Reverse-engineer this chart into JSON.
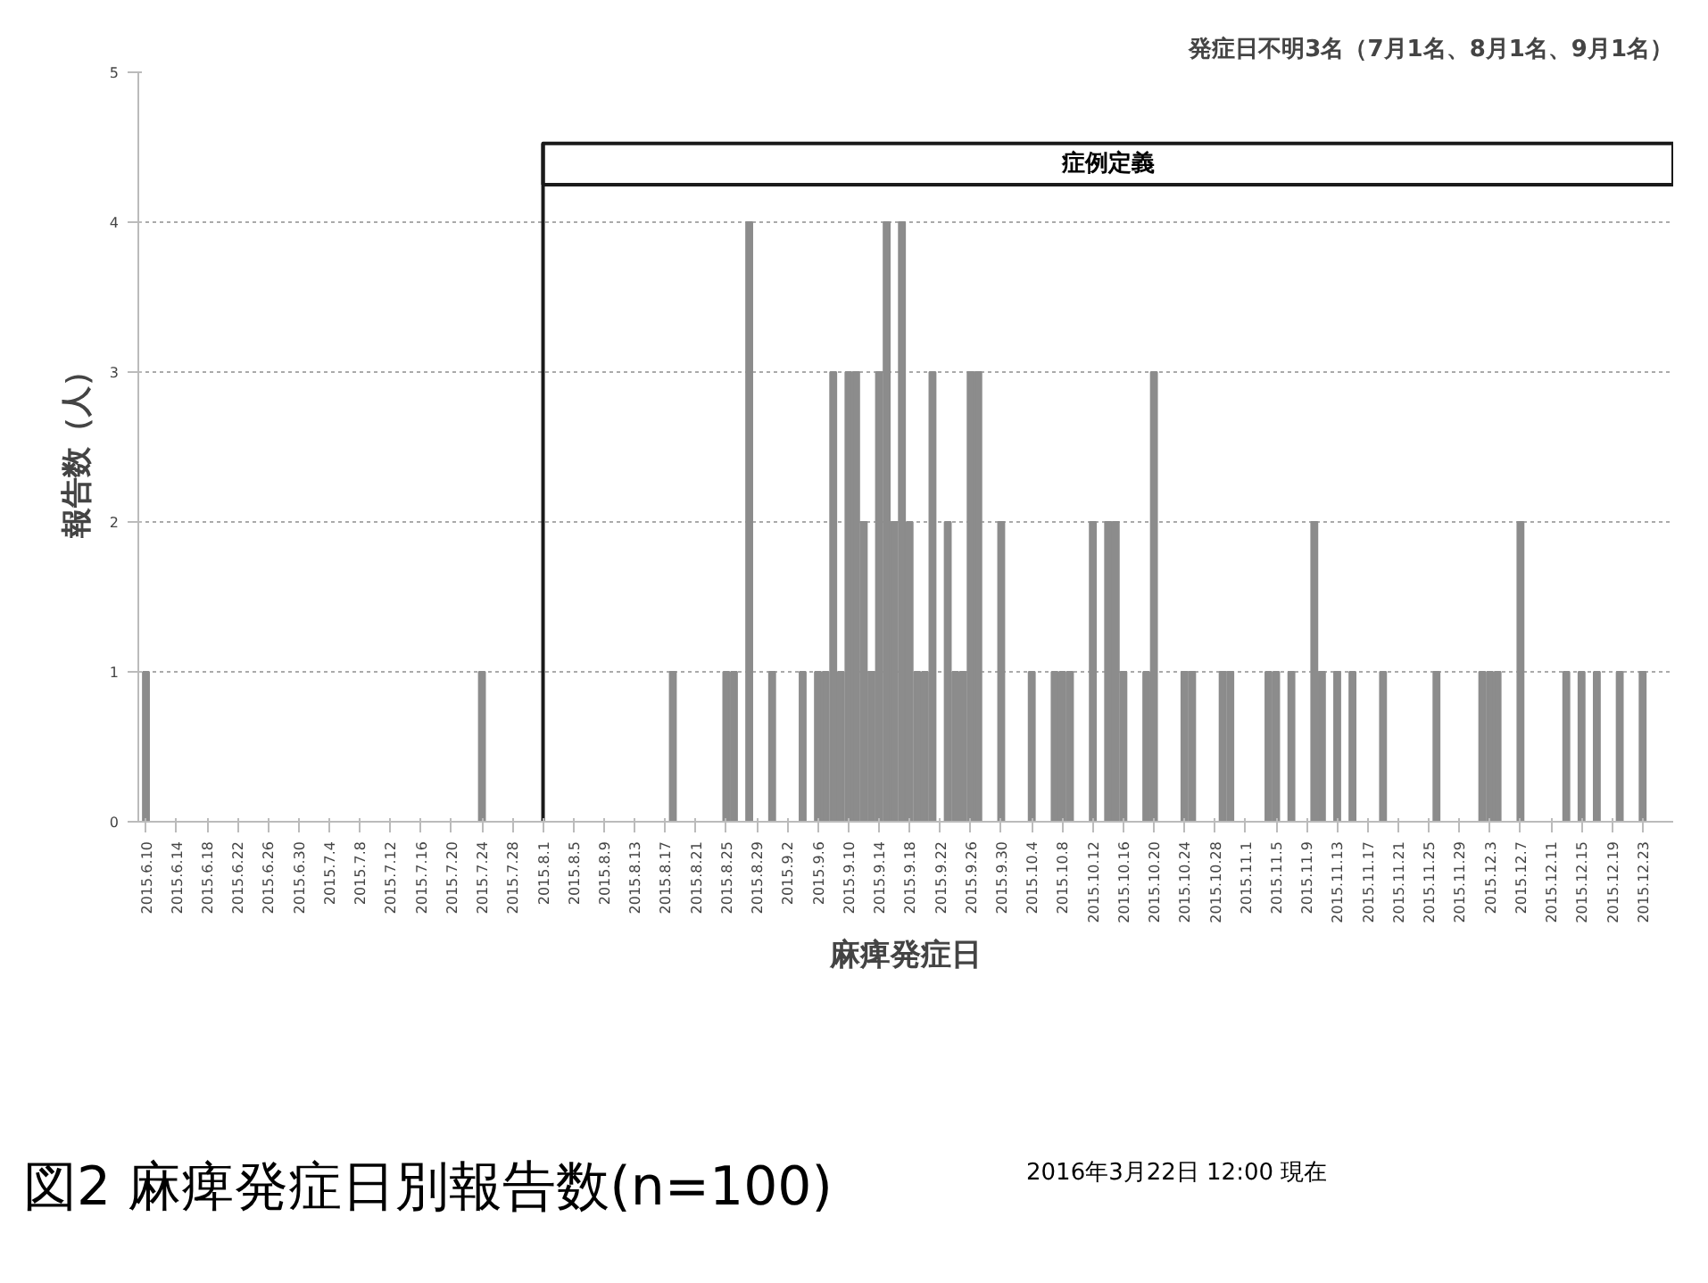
{
  "chart_data": {
    "type": "bar",
    "title": "図2 麻痺発症日別報告数(n=100)",
    "xlabel": "麻痺発症日",
    "ylabel": "報告数（人）",
    "annotations": [
      "発症日不明3名（7月1名、8月1名、9月1名）",
      "2016年3月22日 12:00 現在"
    ],
    "categories": [
      "2015.6.10",
      null,
      null,
      null,
      "2015.6.14",
      null,
      null,
      null,
      "2015.6.18",
      null,
      null,
      null,
      "2015.6.22",
      null,
      null,
      null,
      "2015.6.26",
      null,
      null,
      null,
      "2015.6.30",
      null,
      null,
      null,
      "2015.7.4",
      null,
      null,
      null,
      "2015.7.8",
      null,
      null,
      null,
      "2015.7.12",
      null,
      null,
      null,
      "2015.7.16",
      null,
      null,
      null,
      "2015.7.20",
      null,
      null,
      null,
      "2015.7.24",
      null,
      null,
      null,
      "2015.7.28",
      null,
      null,
      null,
      "2015.8.1",
      null,
      null,
      null,
      "2015.8.5",
      null,
      null,
      null,
      "2015.8.9",
      null,
      null,
      null,
      "2015.8.13",
      null,
      null,
      null,
      "2015.8.17",
      null,
      null,
      null,
      "2015.8.21",
      null,
      null,
      null,
      "2015.8.25",
      null,
      null,
      null,
      "2015.8.29",
      null,
      null,
      null,
      "2015.9.2",
      null,
      null,
      null,
      "2015.9.6",
      null,
      null,
      null,
      "2015.9.10",
      null,
      null,
      null,
      "2015.9.14",
      null,
      null,
      null,
      "2015.9.18",
      null,
      null,
      null,
      "2015.9.22",
      null,
      null,
      null,
      "2015.9.26",
      null,
      null,
      null,
      "2015.9.30",
      null,
      null,
      null,
      "2015.10.4",
      null,
      null,
      null,
      "2015.10.8",
      null,
      null,
      null,
      "2015.10.12",
      null,
      null,
      null,
      "2015.10.16",
      null,
      null,
      null,
      "2015.10.20",
      null,
      null,
      null,
      "2015.10.24",
      null,
      null,
      null,
      "2015.10.28",
      null,
      null,
      null,
      "2015.11.1",
      null,
      null,
      null,
      "2015.11.5",
      null,
      null,
      null,
      "2015.11.9",
      null,
      null,
      null,
      "2015.11.13",
      null,
      null,
      null,
      "2015.11.17",
      null,
      null,
      null,
      "2015.11.21",
      null,
      null,
      null,
      "2015.11.25",
      null,
      null,
      null,
      "2015.11.29",
      null,
      null,
      null,
      "2015.12.3",
      null,
      null,
      null,
      "2015.12.7",
      null,
      null,
      null,
      "2015.12.11",
      null,
      null,
      null,
      "2015.12.15",
      null,
      null,
      null,
      "2015.12.19",
      null,
      null,
      null,
      "2015.12.23",
      null,
      null,
      null
    ],
    "values": [
      1,
      0,
      0,
      0,
      0,
      0,
      0,
      0,
      0,
      0,
      0,
      0,
      0,
      0,
      0,
      0,
      0,
      0,
      0,
      0,
      0,
      0,
      0,
      0,
      0,
      0,
      0,
      0,
      0,
      0,
      0,
      0,
      0,
      0,
      0,
      0,
      0,
      0,
      0,
      0,
      0,
      0,
      0,
      0,
      1,
      0,
      0,
      0,
      0,
      0,
      0,
      0,
      0,
      0,
      0,
      0,
      0,
      0,
      0,
      0,
      0,
      0,
      0,
      0,
      0,
      0,
      0,
      0,
      0,
      1,
      0,
      0,
      0,
      0,
      0,
      0,
      1,
      1,
      0,
      4,
      0,
      0,
      1,
      0,
      0,
      0,
      1,
      0,
      1,
      1,
      3,
      1,
      3,
      3,
      2,
      1,
      3,
      4,
      2,
      4,
      2,
      1,
      1,
      3,
      0,
      2,
      1,
      1,
      3,
      3,
      0,
      0,
      2,
      0,
      0,
      0,
      1,
      0,
      0,
      1,
      1,
      1,
      0,
      0,
      2,
      0,
      2,
      2,
      1,
      0,
      0,
      1,
      3,
      0,
      0,
      0,
      1,
      1,
      0,
      0,
      0,
      1,
      1,
      0,
      0,
      0,
      0,
      1,
      1,
      0,
      1,
      0,
      0,
      2,
      1,
      0,
      1,
      0,
      1,
      0,
      0,
      0,
      1,
      0,
      0,
      0,
      0,
      0,
      0,
      1,
      0,
      0,
      0,
      0,
      0,
      1,
      1,
      1,
      0,
      0,
      2,
      0,
      0,
      0,
      0,
      0,
      1,
      0,
      1,
      0,
      1,
      0,
      0,
      1,
      0,
      0,
      1,
      0,
      0,
      0
    ],
    "color": "#8c8c8c",
    "ylim": [
      0,
      5
    ],
    "yticks": [
      0,
      1,
      2,
      3,
      4,
      5
    ],
    "grid": "y",
    "ref_lines": [
      {
        "axis": "x",
        "value": "2015.8.1",
        "label": "症例定義",
        "color": "#1a1a1a"
      }
    ]
  }
}
